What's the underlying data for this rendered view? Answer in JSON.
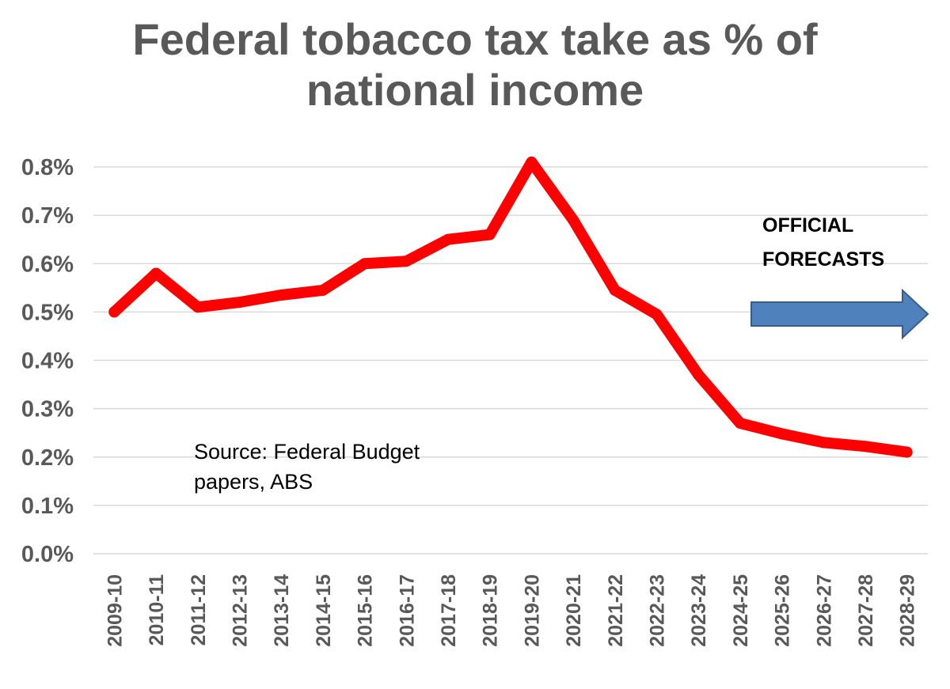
{
  "chart_data": {
    "type": "line",
    "title_lines": [
      "Federal tobacco tax take as % of",
      "national income"
    ],
    "categories": [
      "2009-10",
      "2010-11",
      "2011-12",
      "2012-13",
      "2013-14",
      "2014-15",
      "2015-16",
      "2016-17",
      "2017-18",
      "2018-19",
      "2019-20",
      "2020-21",
      "2021-22",
      "2022-23",
      "2023-24",
      "2024-25",
      "2025-26",
      "2026-27",
      "2027-28",
      "2028-29"
    ],
    "series": [
      {
        "values": [
          0.5,
          0.58,
          0.51,
          0.52,
          0.535,
          0.545,
          0.6,
          0.605,
          0.65,
          0.66,
          0.81,
          0.69,
          0.545,
          0.495,
          0.37,
          0.27,
          0.248,
          0.23,
          0.222,
          0.21
        ],
        "color": "#ff0000"
      }
    ],
    "y_ticks": [
      "0.0%",
      "0.1%",
      "0.2%",
      "0.3%",
      "0.4%",
      "0.5%",
      "0.6%",
      "0.7%",
      "0.8%"
    ],
    "ylim": [
      0,
      0.8
    ],
    "grid": true,
    "annotations": {
      "source": [
        "Source:  Federal Budget",
        "papers, ABS"
      ],
      "forecast": [
        "OFFICIAL",
        "FORECASTS"
      ]
    },
    "arrow_color": "#4f81bd",
    "gridline_color": "#d9d9d9"
  }
}
